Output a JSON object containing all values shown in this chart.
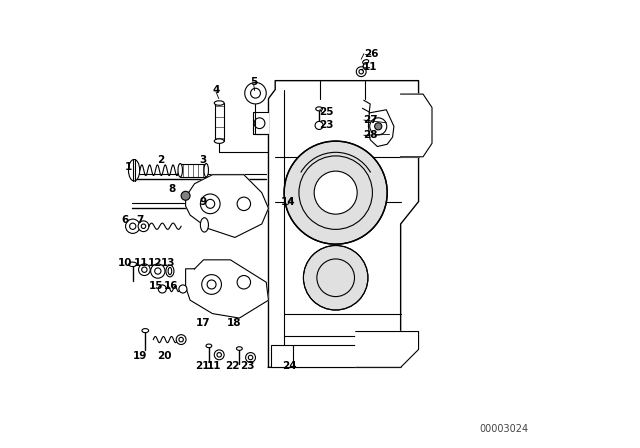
{
  "bg_color": "#ffffff",
  "fg_color": "#000000",
  "fig_width": 6.4,
  "fig_height": 4.48,
  "dpi": 100,
  "watermark": "00003024"
}
